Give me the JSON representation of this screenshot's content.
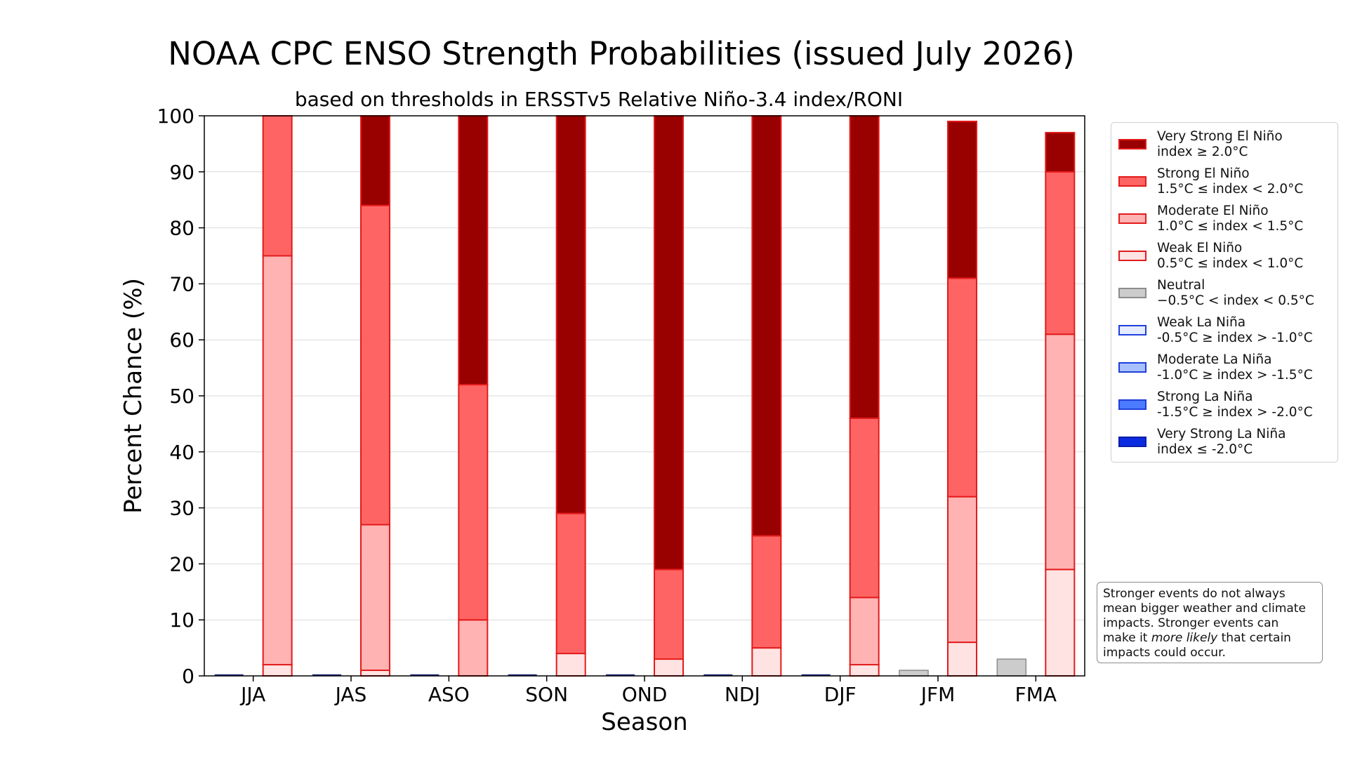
{
  "chart_data": {
    "type": "bar",
    "title": "NOAA CPC ENSO Strength Probabilities (issued July 2026)",
    "subtitle": "based on thresholds in ERSSTv5 Relative Niño-3.4 index/RONI",
    "xlabel": "Season",
    "ylabel": "Percent Chance (%)",
    "ylim": [
      0,
      100
    ],
    "yticks": [
      "0",
      "10",
      "20",
      "30",
      "40",
      "50",
      "60",
      "70",
      "80",
      "90",
      "100"
    ],
    "grid": "horizontal",
    "legend_position": "right",
    "categories": [
      "JJA",
      "JAS",
      "ASO",
      "SON",
      "OND",
      "NDJ",
      "DJF",
      "JFM",
      "FMA"
    ],
    "la_nina_stack": {
      "series": [
        {
          "name": "Neutral",
          "range": "−0.5°C < index < 0.5°C",
          "color": "#cccccc",
          "edge": "#8c8c8c",
          "values": [
            0,
            0,
            0,
            0,
            0,
            0,
            0,
            1,
            3
          ]
        },
        {
          "name": "Weak La Niña",
          "range": "-0.5°C ≥ index > -1.0°C",
          "color": "#e6ecff",
          "edge": "#1f3fd9",
          "values": [
            0,
            0,
            0,
            0,
            0,
            0,
            0,
            0,
            0
          ]
        },
        {
          "name": "Moderate La Niña",
          "range": "-1.0°C ≥ index > -1.5°C",
          "color": "#a9c0ff",
          "edge": "#1f3fd9",
          "values": [
            0,
            0,
            0,
            0,
            0,
            0,
            0,
            0,
            0
          ]
        },
        {
          "name": "Strong La Niña",
          "range": "-1.5°C ≥ index > -2.0°C",
          "color": "#4b7bff",
          "edge": "#1f3fd9",
          "values": [
            0,
            0,
            0,
            0,
            0,
            0,
            0,
            0,
            0
          ]
        },
        {
          "name": "Very Strong La Niña",
          "range": "index ≤ -2.0°C",
          "color": "#0a2be0",
          "edge": "#0a1ea8",
          "values": [
            0,
            0,
            0,
            0,
            0,
            0,
            0,
            0,
            0
          ]
        }
      ]
    },
    "el_nino_stack": {
      "series": [
        {
          "name": "Weak El Niño",
          "range": "0.5°C ≤ index < 1.0°C",
          "color": "#ffe3e3",
          "edge": "#e31b1b",
          "values": [
            2,
            1,
            0,
            4,
            3,
            5,
            2,
            6,
            19
          ]
        },
        {
          "name": "Moderate El Niño",
          "range": "1.0°C ≤ index < 1.5°C",
          "color": "#ffb3b3",
          "edge": "#e31b1b",
          "values": [
            73,
            26,
            10,
            0,
            0,
            0,
            12,
            26,
            42
          ]
        },
        {
          "name": "Strong El Niño",
          "range": "1.5°C ≤ index < 2.0°C",
          "color": "#ff6464",
          "edge": "#e31b1b",
          "values": [
            25,
            57,
            42,
            25,
            16,
            20,
            32,
            39,
            29
          ]
        },
        {
          "name": "Very Strong El Niño",
          "range": "index ≥ 2.0°C",
          "color": "#990000",
          "edge": "#e31b1b",
          "values": [
            0,
            16,
            48,
            71,
            81,
            75,
            54,
            28,
            7
          ]
        }
      ]
    },
    "legend_order": [
      "Very Strong El Niño",
      "Strong El Niño",
      "Moderate El Niño",
      "Weak El Niño",
      "Neutral",
      "Weak La Niña",
      "Moderate La Niña",
      "Strong La Niña",
      "Very Strong La Niña"
    ]
  },
  "note": {
    "line1": "Stronger events do not always",
    "line2": "mean bigger weather and climate",
    "line3": "impacts. Stronger events can",
    "line4_pre": "make it ",
    "line4_em": "more likely",
    "line4_post": " that certain",
    "line5": "impacts could occur."
  }
}
